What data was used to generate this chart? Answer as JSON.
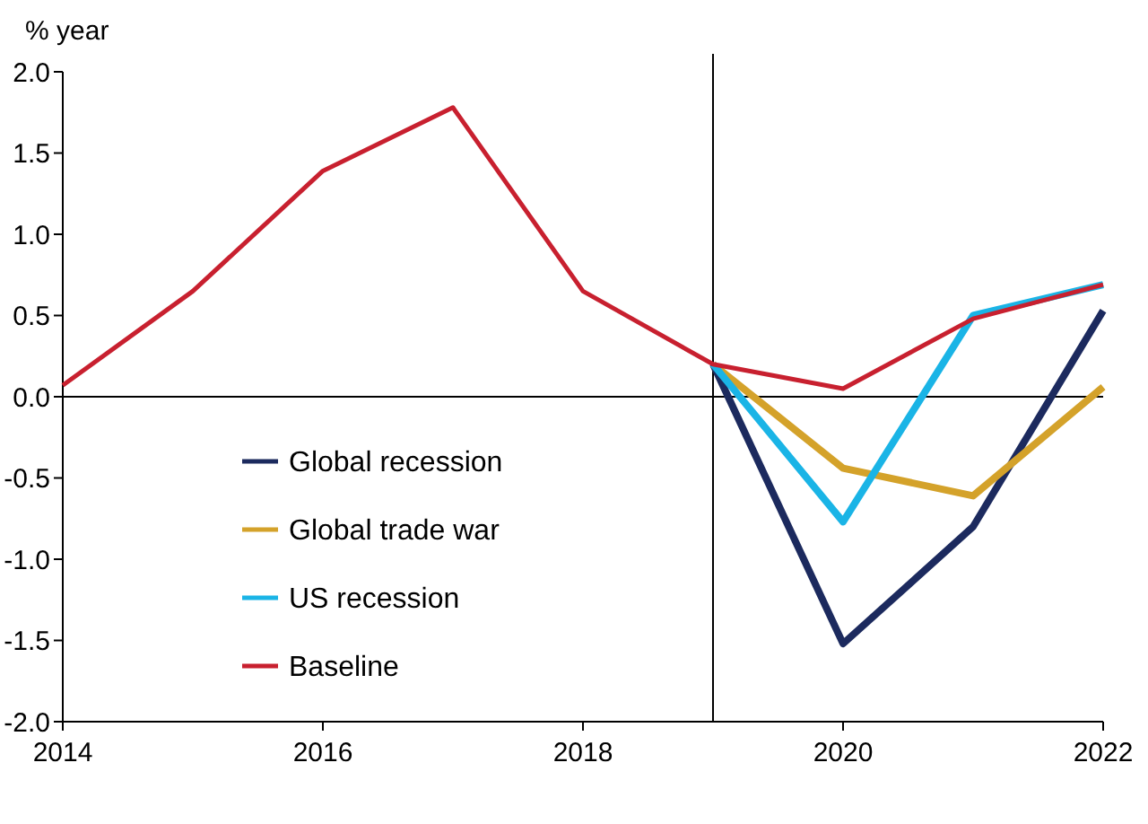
{
  "chart_data": {
    "type": "line",
    "ylabel": "% year",
    "x": [
      2014,
      2015,
      2016,
      2017,
      2018,
      2019,
      2020,
      2021,
      2022
    ],
    "series": [
      {
        "name": "Global recession",
        "color": "#1c2a5e",
        "values": [
          null,
          null,
          null,
          null,
          null,
          0.2,
          -1.52,
          -0.8,
          0.53
        ]
      },
      {
        "name": "Global trade war",
        "color": "#d4a22a",
        "values": [
          null,
          null,
          null,
          null,
          null,
          0.2,
          -0.44,
          -0.61,
          0.06
        ]
      },
      {
        "name": "US recession",
        "color": "#1ab4e6",
        "values": [
          null,
          null,
          null,
          null,
          null,
          0.2,
          -0.77,
          0.5,
          0.69
        ]
      },
      {
        "name": "Baseline",
        "color": "#c8202f",
        "values": [
          0.07,
          0.65,
          1.39,
          1.78,
          0.65,
          0.2,
          0.05,
          0.48,
          0.69
        ]
      }
    ],
    "xlim": [
      2014,
      2022
    ],
    "xticks": [
      2014,
      2016,
      2018,
      2020,
      2022
    ],
    "ylim": [
      -2,
      2
    ],
    "yticks": [
      {
        "value": -2,
        "label": "-2.0"
      },
      {
        "value": -1.5,
        "label": "-1.5"
      },
      {
        "value": -1,
        "label": "-1.0"
      },
      {
        "value": -0.5,
        "label": "-0.5"
      },
      {
        "value": 0,
        "label": "0.0"
      },
      {
        "value": 0.5,
        "label": "0.5"
      },
      {
        "value": 1,
        "label": "1.0"
      },
      {
        "value": 1.5,
        "label": "1.5"
      },
      {
        "value": 2,
        "label": "2.0"
      }
    ],
    "ref_lines": [
      {
        "axis": "x",
        "value": 2019,
        "color": "#000000"
      },
      {
        "axis": "y",
        "value": 0,
        "color": "#000000"
      }
    ],
    "grid": false,
    "legend": "bottom left",
    "line_style": "solid",
    "marker": "none"
  }
}
